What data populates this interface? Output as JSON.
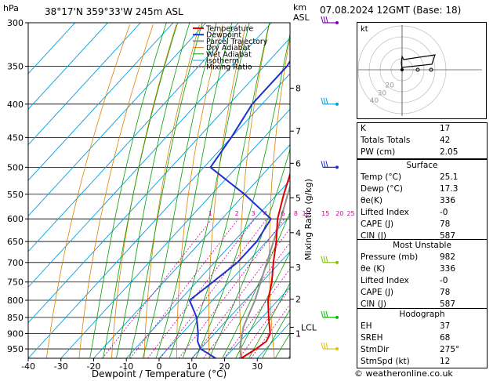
{
  "header": {
    "hpa_label": "hPa",
    "location": "38°17'N  359°33'W  245m  ASL",
    "km_label": "km",
    "asl_label": "ASL",
    "datetime": "07.08.2024  12GMT  (Base: 18)"
  },
  "chart_data": {
    "type": "skew-t",
    "xlabel": "Dewpoint / Temperature (°C)",
    "ylabel_right": "Mixing Ratio (g/kg)",
    "pressure_ticks": [
      300,
      350,
      400,
      450,
      500,
      550,
      600,
      650,
      700,
      750,
      800,
      850,
      900,
      950
    ],
    "temperature_ticks": [
      -40,
      -30,
      -20,
      -10,
      0,
      10,
      20,
      30
    ],
    "height_ticks_km": [
      {
        "p": 378,
        "label": "8"
      },
      {
        "p": 440,
        "label": "7"
      },
      {
        "p": 493,
        "label": "6"
      },
      {
        "p": 557,
        "label": "5"
      },
      {
        "p": 630,
        "label": "4"
      },
      {
        "p": 712,
        "label": "3"
      },
      {
        "p": 797,
        "label": "2"
      },
      {
        "p": 900,
        "label": "1"
      }
    ],
    "lcl_label": "LCL",
    "lcl_pressure": 880,
    "mixing_ratio_labels": [
      "1",
      "2",
      "3",
      "4",
      "6",
      "8",
      "10",
      "15",
      "20",
      "25"
    ],
    "legend": [
      "Temperature",
      "Dewpoint",
      "Parcel Trajectory",
      "Dry Adiabat",
      "Wet Adiabat",
      "Isotherm",
      "Mixing Ratio"
    ],
    "legend_colors": [
      "#e00000",
      "#2030d0",
      "#909090",
      "#e08000",
      "#00a000",
      "#00a0e0",
      "#d000a0"
    ],
    "temperature_profile": [
      {
        "p": 982,
        "t": 25.1
      },
      {
        "p": 950,
        "t": 27
      },
      {
        "p": 925,
        "t": 28
      },
      {
        "p": 900,
        "t": 27
      },
      {
        "p": 850,
        "t": 22
      },
      {
        "p": 800,
        "t": 17
      },
      {
        "p": 750,
        "t": 13
      },
      {
        "p": 700,
        "t": 8
      },
      {
        "p": 650,
        "t": 3
      },
      {
        "p": 600,
        "t": -3
      },
      {
        "p": 550,
        "t": -8
      },
      {
        "p": 500,
        "t": -13
      },
      {
        "p": 450,
        "t": -19
      },
      {
        "p": 400,
        "t": -26
      },
      {
        "p": 350,
        "t": -35
      },
      {
        "p": 300,
        "t": -43
      }
    ],
    "dewpoint_profile": [
      {
        "p": 982,
        "t": 17.3
      },
      {
        "p": 950,
        "t": 10
      },
      {
        "p": 925,
        "t": 7
      },
      {
        "p": 900,
        "t": 5
      },
      {
        "p": 850,
        "t": 0
      },
      {
        "p": 800,
        "t": -7
      },
      {
        "p": 750,
        "t": -5
      },
      {
        "p": 700,
        "t": -3
      },
      {
        "p": 650,
        "t": -3
      },
      {
        "p": 600,
        "t": -5
      },
      {
        "p": 550,
        "t": -20
      },
      {
        "p": 500,
        "t": -38
      },
      {
        "p": 450,
        "t": -40
      },
      {
        "p": 400,
        "t": -43
      },
      {
        "p": 350,
        "t": -43
      },
      {
        "p": 300,
        "t": -47
      }
    ],
    "parcel_profile": [
      {
        "p": 982,
        "t": 25.1
      },
      {
        "p": 950,
        "t": 22
      },
      {
        "p": 900,
        "t": 18.5
      },
      {
        "p": 880,
        "t": 17
      },
      {
        "p": 800,
        "t": 13
      },
      {
        "p": 700,
        "t": 6
      },
      {
        "p": 600,
        "t": -2
      },
      {
        "p": 500,
        "t": -12
      },
      {
        "p": 400,
        "t": -25
      },
      {
        "p": 300,
        "t": -43
      }
    ]
  },
  "hodograph": {
    "unit_label": "kt",
    "ring_labels": [
      "20",
      "30",
      "40"
    ]
  },
  "indices": {
    "rows": [
      {
        "label": "K",
        "value": "17"
      },
      {
        "label": "Totals Totals",
        "value": "42"
      },
      {
        "label": "PW (cm)",
        "value": "2.05"
      }
    ]
  },
  "surface": {
    "title": "Surface",
    "rows": [
      {
        "label": "Temp (°C)",
        "value": "25.1"
      },
      {
        "label": "Dewp (°C)",
        "value": "17.3"
      },
      {
        "label": "θe(K)",
        "value": "336"
      },
      {
        "label": "Lifted Index",
        "value": "-0"
      },
      {
        "label": "CAPE (J)",
        "value": "78"
      },
      {
        "label": "CIN (J)",
        "value": "587"
      }
    ]
  },
  "most_unstable": {
    "title": "Most Unstable",
    "rows": [
      {
        "label": "Pressure (mb)",
        "value": "982"
      },
      {
        "label": "θe (K)",
        "value": "336"
      },
      {
        "label": "Lifted Index",
        "value": "-0"
      },
      {
        "label": "CAPE (J)",
        "value": "78"
      },
      {
        "label": "CIN (J)",
        "value": "587"
      }
    ]
  },
  "hodo_table": {
    "title": "Hodograph",
    "rows": [
      {
        "label": "EH",
        "value": "37"
      },
      {
        "label": "SREH",
        "value": "68"
      },
      {
        "label": "StmDir",
        "value": "275°"
      },
      {
        "label": "StmSpd (kt)",
        "value": "12"
      }
    ]
  },
  "footer": {
    "copyright": "© weatheronline.co.uk"
  }
}
